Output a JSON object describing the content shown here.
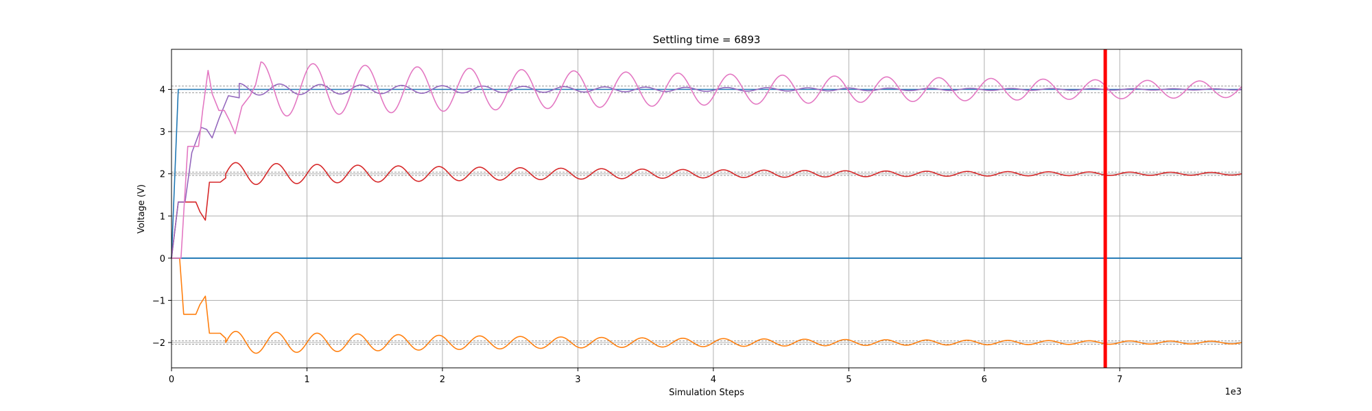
{
  "chart_data": {
    "type": "line",
    "title": "Settling time = 6893",
    "xlabel": "Simulation Steps",
    "ylabel": "Voltage (V)",
    "x_offset_label": "1e3",
    "xlim": [
      0,
      7.9
    ],
    "ylim": [
      -2.6,
      4.95
    ],
    "x_ticks": [
      0,
      1,
      2,
      3,
      4,
      5,
      6,
      7
    ],
    "x_tick_labels": [
      "0",
      "1",
      "2",
      "3",
      "4",
      "5",
      "6",
      "7"
    ],
    "y_ticks": [
      -2,
      -1,
      0,
      1,
      2,
      3,
      4
    ],
    "y_tick_labels": [
      "−2",
      "−1",
      "0",
      "1",
      "2",
      "3",
      "4"
    ],
    "grid": true,
    "settling_time": 6.893,
    "settling_marker_color": "#ff0000",
    "tolerance_bands": [
      {
        "center": 4,
        "lower": 3.92,
        "upper": 4.08
      },
      {
        "center": 2,
        "lower": 1.96,
        "upper": 2.04
      },
      {
        "center": -2,
        "lower": -2.04,
        "upper": -1.96
      }
    ],
    "series": [
      {
        "color": "#1f77b4",
        "kind": "step",
        "points": [
          [
            0,
            0
          ],
          [
            0.05,
            4
          ],
          [
            7.9,
            4
          ]
        ]
      },
      {
        "color": "#1f77b4",
        "kind": "flat",
        "points": [
          [
            0,
            0
          ],
          [
            7.9,
            0
          ]
        ]
      },
      {
        "color": "#d62728",
        "kind": "oscillation",
        "target": 2,
        "rise_points": [
          [
            0,
            0
          ],
          [
            0.05,
            1.33
          ],
          [
            0.18,
            1.33
          ],
          [
            0.21,
            1.1
          ],
          [
            0.25,
            0.9
          ],
          [
            0.28,
            1.8
          ],
          [
            0.36,
            1.8
          ],
          [
            0.4,
            1.9
          ]
        ],
        "amplitude": 0.27,
        "decay": 0.29,
        "period": 0.3,
        "start": 0.4,
        "phase": 0.0
      },
      {
        "color": "#ff7f0e",
        "kind": "oscillation",
        "target": -2,
        "rise_points": [
          [
            0,
            0
          ],
          [
            0.06,
            0
          ],
          [
            0.09,
            -1.33
          ],
          [
            0.18,
            -1.33
          ],
          [
            0.21,
            -1.1
          ],
          [
            0.25,
            -0.9
          ],
          [
            0.28,
            -1.78
          ],
          [
            0.36,
            -1.78
          ],
          [
            0.4,
            -1.9
          ]
        ],
        "amplitude": 0.27,
        "decay": 0.29,
        "period": 0.3,
        "start": 0.4,
        "phase": 0.0
      },
      {
        "color": "#9467bd",
        "kind": "oscillation",
        "target": 4,
        "rise_points": [
          [
            0,
            0
          ],
          [
            0.05,
            1.33
          ],
          [
            0.1,
            1.33
          ],
          [
            0.15,
            2.5
          ],
          [
            0.22,
            3.1
          ],
          [
            0.26,
            3.05
          ],
          [
            0.3,
            2.85
          ],
          [
            0.35,
            3.3
          ],
          [
            0.42,
            3.85
          ],
          [
            0.5,
            3.8
          ]
        ],
        "amplitude": 0.14,
        "decay": 0.32,
        "period": 0.3,
        "start": 0.5,
        "phase": 1.6
      },
      {
        "color": "#e377c2",
        "kind": "oscillation",
        "target": 4,
        "rise_points": [
          [
            0,
            0
          ],
          [
            0.07,
            0
          ],
          [
            0.12,
            2.65
          ],
          [
            0.2,
            2.65
          ],
          [
            0.23,
            3.5
          ],
          [
            0.27,
            4.45
          ],
          [
            0.3,
            3.9
          ],
          [
            0.35,
            3.5
          ],
          [
            0.39,
            3.5
          ],
          [
            0.43,
            3.25
          ],
          [
            0.47,
            2.95
          ],
          [
            0.52,
            3.6
          ],
          [
            0.58,
            3.85
          ],
          [
            0.62,
            4.1
          ],
          [
            0.66,
            4.65
          ]
        ],
        "amplitude": 0.65,
        "decay": 0.17,
        "period": 0.385,
        "start": 0.66,
        "phase": 1.57
      }
    ]
  }
}
